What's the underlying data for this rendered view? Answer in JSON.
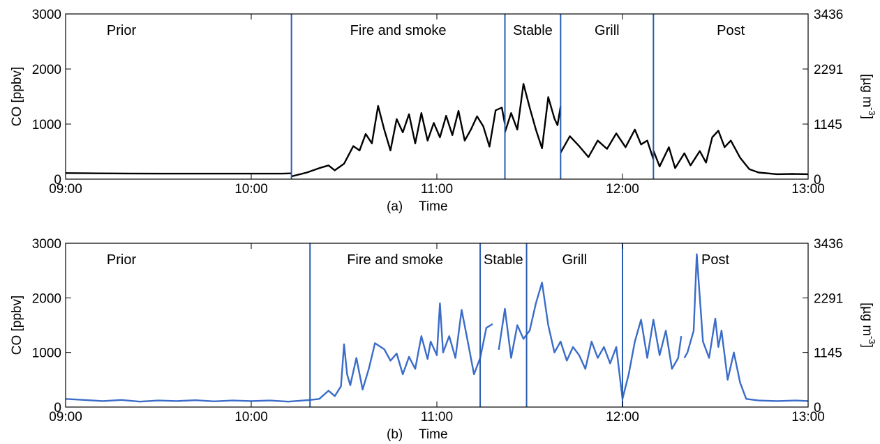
{
  "chart_data": [
    {
      "type": "line",
      "panel_label": "(a)",
      "xlabel": "Time",
      "ylabel": "CO [ppbv]",
      "ylabel_right": "[µg m-3]",
      "ylabel_right_base": "[µg m",
      "ylabel_right_sup": "-3",
      "ylabel_right_close": "]",
      "xlim": [
        "09:00",
        "13:00"
      ],
      "ylim": [
        0,
        3000
      ],
      "xticks": [
        "09:00",
        "10:00",
        "11:00",
        "12:00",
        "13:00"
      ],
      "yticks": [
        "0",
        "1000",
        "2000",
        "3000"
      ],
      "yticks_right": [
        "0",
        "1145",
        "2291",
        "3436"
      ],
      "line_color": "#000000",
      "phases": [
        {
          "label": "Prior",
          "start": "09:00",
          "end": "10:13"
        },
        {
          "label": "Fire and smoke",
          "start": "10:13",
          "end": "11:22"
        },
        {
          "label": "Stable",
          "start": "11:22",
          "end": "11:40"
        },
        {
          "label": "Grill",
          "start": "11:40",
          "end": "12:10"
        },
        {
          "label": "Post",
          "start": "12:10",
          "end": "13:00"
        }
      ],
      "boundary_color": "#2a5db0",
      "series": [
        {
          "segments": [
            [
              [
                "09:00",
                110
              ],
              [
                "09:10",
                105
              ],
              [
                "09:20",
                102
              ],
              [
                "09:30",
                100
              ],
              [
                "09:40",
                100
              ],
              [
                "09:50",
                100
              ],
              [
                "10:00",
                100
              ],
              [
                "10:10",
                100
              ],
              [
                "10:13",
                105
              ]
            ],
            [
              [
                "10:13",
                50
              ],
              [
                "10:18",
                120
              ],
              [
                "10:22",
                200
              ],
              [
                "10:25",
                250
              ],
              [
                "10:27",
                160
              ],
              [
                "10:30",
                280
              ],
              [
                "10:33",
                600
              ],
              [
                "10:35",
                520
              ],
              [
                "10:37",
                820
              ],
              [
                "10:39",
                650
              ],
              [
                "10:41",
                1330
              ],
              [
                "10:43",
                900
              ],
              [
                "10:45",
                520
              ],
              [
                "10:47",
                1090
              ],
              [
                "10:49",
                850
              ],
              [
                "10:51",
                1180
              ],
              [
                "10:53",
                650
              ],
              [
                "10:55",
                1200
              ],
              [
                "10:57",
                700
              ],
              [
                "10:59",
                1020
              ],
              [
                "11:01",
                760
              ],
              [
                "11:03",
                1150
              ],
              [
                "11:05",
                800
              ],
              [
                "11:07",
                1240
              ],
              [
                "11:09",
                700
              ],
              [
                "11:11",
                900
              ],
              [
                "11:13",
                1140
              ],
              [
                "11:15",
                960
              ],
              [
                "11:17",
                590
              ],
              [
                "11:19",
                1250
              ],
              [
                "11:21",
                1300
              ],
              [
                "11:22",
                1000
              ]
            ],
            [
              [
                "11:22",
                850
              ],
              [
                "11:24",
                1200
              ],
              [
                "11:26",
                900
              ],
              [
                "11:28",
                1730
              ],
              [
                "11:30",
                1300
              ],
              [
                "11:32",
                900
              ],
              [
                "11:34",
                560
              ],
              [
                "11:36",
                1490
              ],
              [
                "11:38",
                1100
              ],
              [
                "11:39",
                980
              ],
              [
                "11:40",
                1320
              ]
            ],
            [
              [
                "11:40",
                480
              ],
              [
                "11:43",
                780
              ],
              [
                "11:46",
                600
              ],
              [
                "11:49",
                400
              ],
              [
                "11:52",
                700
              ],
              [
                "11:55",
                550
              ],
              [
                "11:58",
                830
              ],
              [
                "12:01",
                580
              ],
              [
                "12:04",
                900
              ],
              [
                "12:06",
                630
              ],
              [
                "12:08",
                700
              ],
              [
                "12:10",
                360
              ]
            ],
            [
              [
                "12:10",
                520
              ],
              [
                "12:12",
                230
              ],
              [
                "12:15",
                580
              ],
              [
                "12:17",
                200
              ],
              [
                "12:20",
                470
              ],
              [
                "12:22",
                250
              ],
              [
                "12:25",
                510
              ],
              [
                "12:27",
                300
              ],
              [
                "12:29",
                760
              ],
              [
                "12:31",
                880
              ],
              [
                "12:33",
                580
              ],
              [
                "12:35",
                700
              ],
              [
                "12:38",
                390
              ],
              [
                "12:41",
                180
              ],
              [
                "12:44",
                120
              ],
              [
                "12:50",
                90
              ],
              [
                "12:55",
                95
              ],
              [
                "13:00",
                90
              ]
            ]
          ]
        }
      ]
    },
    {
      "type": "line",
      "panel_label": "(b)",
      "xlabel": "Time",
      "ylabel": "CO [ppbv]",
      "ylabel_right": "[µg m-3]",
      "ylabel_right_base": "[µg m",
      "ylabel_right_sup": "-3",
      "ylabel_right_close": "]",
      "xlim": [
        "09:00",
        "13:00"
      ],
      "ylim": [
        0,
        3000
      ],
      "xticks": [
        "09:00",
        "10:00",
        "11:00",
        "12:00",
        "13:00"
      ],
      "yticks": [
        "0",
        "1000",
        "2000",
        "3000"
      ],
      "yticks_right": [
        "0",
        "1145",
        "2291",
        "3436"
      ],
      "line_color": "#3a6cc8",
      "phases": [
        {
          "label": "Prior",
          "start": "09:00",
          "end": "10:19"
        },
        {
          "label": "Fire and smoke",
          "start": "10:19",
          "end": "11:14"
        },
        {
          "label": "Stable",
          "start": "11:14",
          "end": "11:29"
        },
        {
          "label": "Grill",
          "start": "11:29",
          "end": "12:00"
        },
        {
          "label": "Post",
          "start": "12:00",
          "end": "13:00"
        }
      ],
      "boundary_color": "#2a5db0",
      "series": [
        {
          "segments": [
            [
              [
                "09:00",
                150
              ],
              [
                "09:06",
                130
              ],
              [
                "09:12",
                110
              ],
              [
                "09:18",
                130
              ],
              [
                "09:24",
                100
              ],
              [
                "09:30",
                120
              ],
              [
                "09:36",
                110
              ],
              [
                "09:42",
                125
              ],
              [
                "09:48",
                105
              ],
              [
                "09:54",
                120
              ],
              [
                "10:00",
                110
              ],
              [
                "10:06",
                120
              ],
              [
                "10:12",
                100
              ],
              [
                "10:19",
                130
              ],
              [
                "10:22",
                150
              ],
              [
                "10:25",
                300
              ],
              [
                "10:27",
                200
              ],
              [
                "10:29",
                380
              ],
              [
                "10:30",
                1150
              ],
              [
                "10:31",
                600
              ],
              [
                "10:32",
                400
              ],
              [
                "10:34",
                900
              ],
              [
                "10:36",
                320
              ],
              [
                "10:38",
                700
              ],
              [
                "10:40",
                1170
              ],
              [
                "10:43",
                1060
              ],
              [
                "10:45",
                850
              ],
              [
                "10:47",
                980
              ],
              [
                "10:49",
                600
              ],
              [
                "10:51",
                920
              ],
              [
                "10:53",
                700
              ],
              [
                "10:55",
                1300
              ],
              [
                "10:57",
                880
              ],
              [
                "10:58",
                1200
              ],
              [
                "11:00",
                950
              ],
              [
                "11:01",
                1900
              ],
              [
                "11:02",
                1000
              ],
              [
                "11:04",
                1300
              ],
              [
                "11:06",
                900
              ],
              [
                "11:08",
                1780
              ],
              [
                "11:10",
                1200
              ],
              [
                "11:12",
                600
              ],
              [
                "11:14",
                900
              ],
              [
                "11:16",
                1450
              ],
              [
                "11:18",
                1520
              ]
            ],
            [
              [
                "11:20",
                1050
              ],
              [
                "11:22",
                1800
              ],
              [
                "11:24",
                900
              ],
              [
                "11:26",
                1500
              ],
              [
                "11:28",
                1250
              ],
              [
                "11:30",
                1400
              ],
              [
                "11:32",
                1900
              ],
              [
                "11:34",
                2280
              ],
              [
                "11:36",
                1500
              ],
              [
                "11:38",
                1000
              ],
              [
                "11:40",
                1200
              ],
              [
                "11:42",
                850
              ],
              [
                "11:44",
                1100
              ],
              [
                "11:46",
                950
              ],
              [
                "11:48",
                700
              ],
              [
                "11:50",
                1200
              ],
              [
                "11:52",
                900
              ],
              [
                "11:54",
                1100
              ],
              [
                "11:56",
                800
              ],
              [
                "11:58",
                1100
              ],
              [
                "12:00",
                150
              ],
              [
                "12:02",
                600
              ],
              [
                "12:04",
                1200
              ],
              [
                "12:06",
                1600
              ],
              [
                "12:08",
                900
              ],
              [
                "12:10",
                1600
              ],
              [
                "12:12",
                950
              ],
              [
                "12:14",
                1400
              ],
              [
                "12:16",
                700
              ],
              [
                "12:18",
                900
              ],
              [
                "12:19",
                1300
              ]
            ],
            [
              [
                "12:20",
                900
              ],
              [
                "12:21",
                1000
              ],
              [
                "12:23",
                1400
              ],
              [
                "12:24",
                2800
              ],
              [
                "12:26",
                1200
              ],
              [
                "12:28",
                900
              ],
              [
                "12:30",
                1620
              ],
              [
                "12:31",
                1100
              ],
              [
                "12:32",
                1400
              ],
              [
                "12:34",
                500
              ],
              [
                "12:36",
                1000
              ],
              [
                "12:38",
                450
              ],
              [
                "12:40",
                150
              ],
              [
                "12:44",
                120
              ],
              [
                "12:50",
                110
              ],
              [
                "12:56",
                120
              ],
              [
                "13:00",
                110
              ]
            ]
          ]
        }
      ]
    }
  ]
}
